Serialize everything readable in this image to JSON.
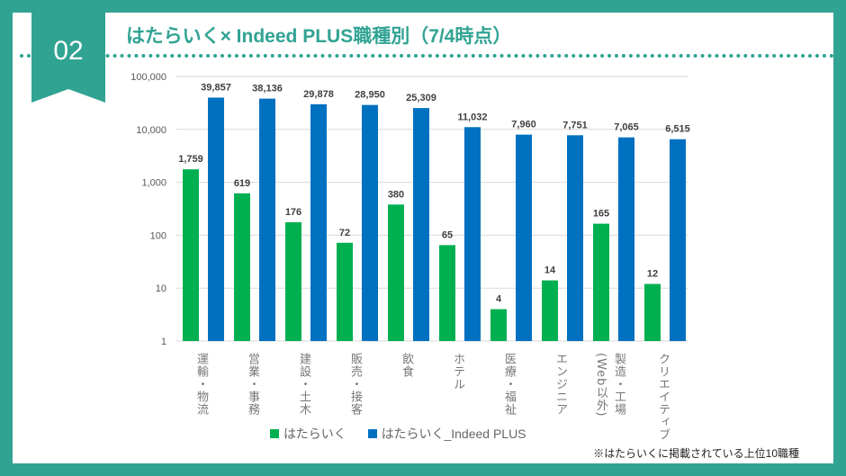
{
  "badge": "02",
  "title": "はたらいく× Indeed PLUS職種別（7/4時点）",
  "note": "※はたらいくに掲載されている上位10職種",
  "colors": {
    "bg": "#31a393",
    "green": "#00b050",
    "blue": "#0070c0"
  },
  "chart_data": {
    "type": "bar",
    "yscale": "log",
    "ylim": [
      1,
      100000
    ],
    "yticks": [
      "1",
      "10",
      "100",
      "1,000",
      "10,000",
      "100,000"
    ],
    "categories": [
      "運輸・物流",
      "営業・事務",
      "建設・土木",
      "販売・接客",
      "飲食",
      "ホテル",
      "医療・福祉",
      "エンジニア",
      "製造・工場 (Web以外)",
      "クリエイティブ"
    ],
    "series": [
      {
        "name": "はたらいく",
        "color": "#00b050",
        "values": [
          1759,
          619,
          176,
          72,
          380,
          65,
          4,
          14,
          165,
          12
        ]
      },
      {
        "name": "はたらいく_Indeed PLUS",
        "color": "#0070c0",
        "values": [
          39857,
          38136,
          29878,
          28950,
          25309,
          11032,
          7960,
          7751,
          7065,
          6515
        ]
      }
    ],
    "legend": "bottom",
    "grid": true
  }
}
